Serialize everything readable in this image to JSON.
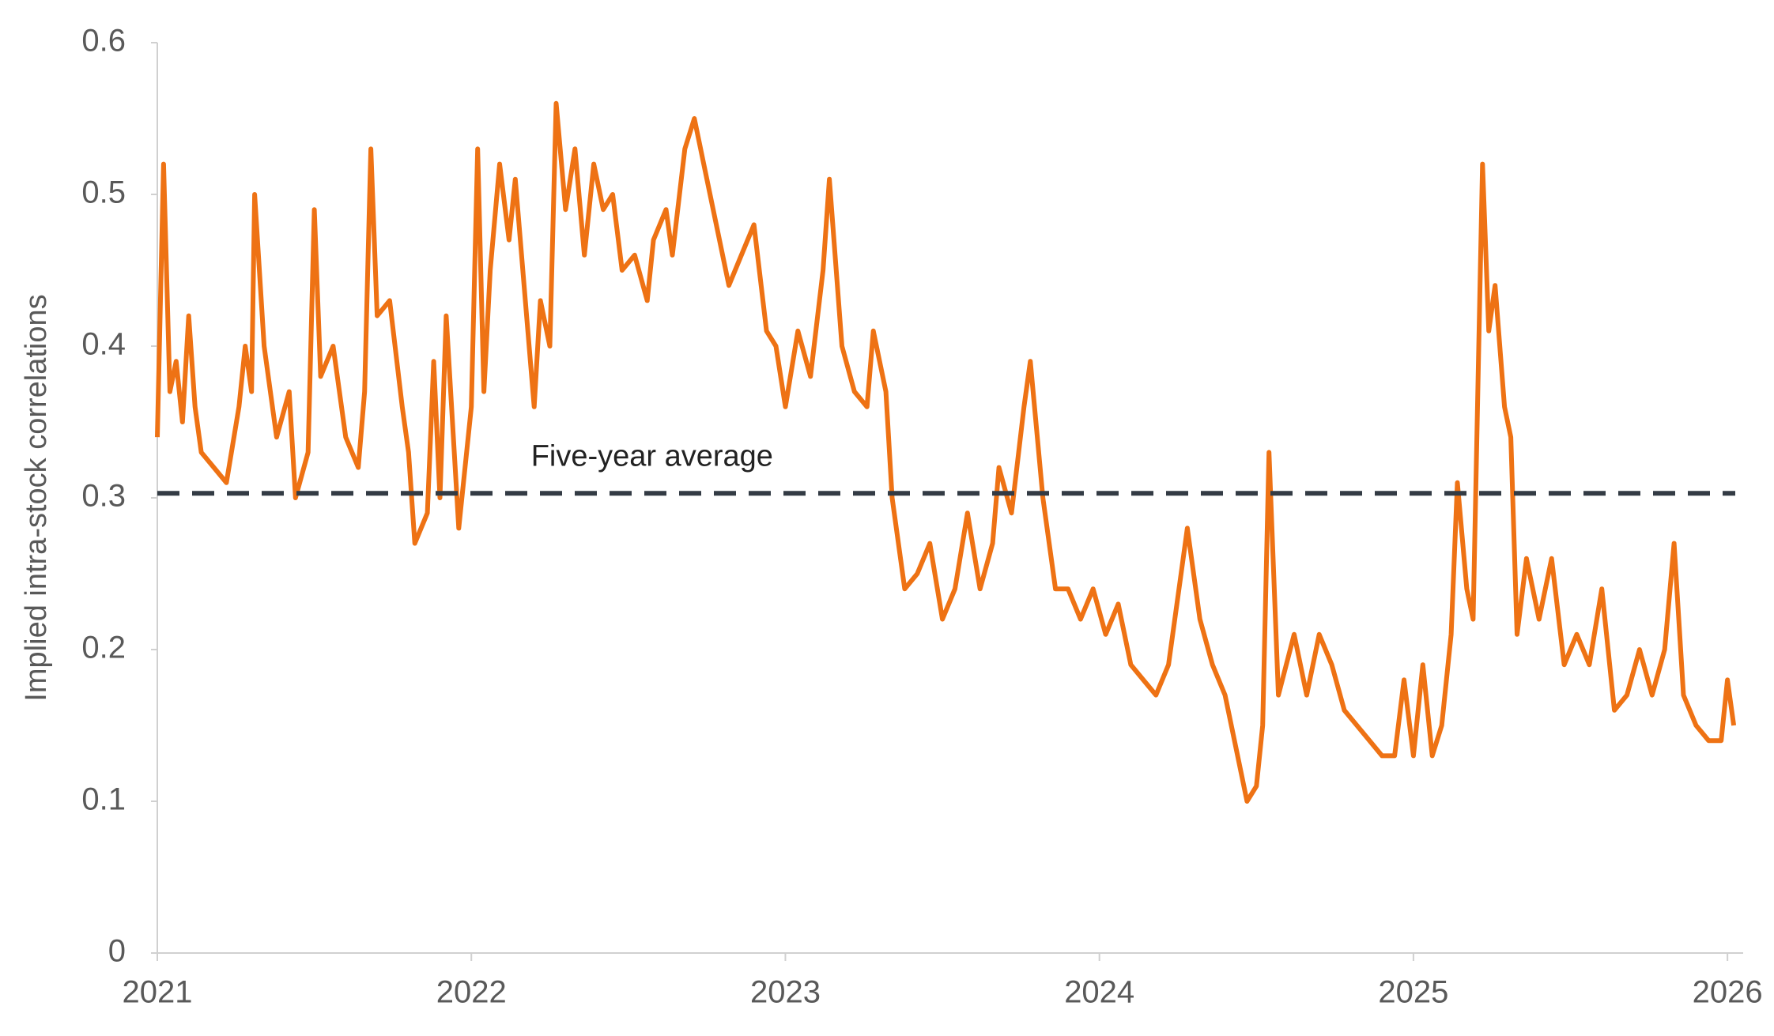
{
  "chart_data": {
    "type": "line",
    "y_label": "Implied intra-stock correlations",
    "xlim": [
      2021,
      2026.05
    ],
    "xticks": [
      2021,
      2022,
      2023,
      2024,
      2025,
      2026
    ],
    "ylim": [
      0,
      0.6
    ],
    "yticks": [
      0,
      0.1,
      0.2,
      0.3,
      0.4,
      0.5,
      0.6
    ],
    "x": [
      2021.0,
      2021.02,
      2021.04,
      2021.06,
      2021.08,
      2021.1,
      2021.12,
      2021.14,
      2021.18,
      2021.22,
      2021.26,
      2021.28,
      2021.3,
      2021.31,
      2021.34,
      2021.38,
      2021.42,
      2021.44,
      2021.48,
      2021.5,
      2021.52,
      2021.56,
      2021.6,
      2021.64,
      2021.66,
      2021.68,
      2021.7,
      2021.74,
      2021.78,
      2021.8,
      2021.82,
      2021.86,
      2021.88,
      2021.9,
      2021.92,
      2021.96,
      2022.0,
      2022.02,
      2022.04,
      2022.06,
      2022.09,
      2022.12,
      2022.14,
      2022.18,
      2022.2,
      2022.22,
      2022.25,
      2022.27,
      2022.3,
      2022.33,
      2022.36,
      2022.39,
      2022.42,
      2022.45,
      2022.48,
      2022.52,
      2022.56,
      2022.58,
      2022.62,
      2022.64,
      2022.68,
      2022.71,
      2022.74,
      2022.78,
      2022.82,
      2022.86,
      2022.9,
      2022.94,
      2022.97,
      2023.0,
      2023.04,
      2023.08,
      2023.12,
      2023.14,
      2023.18,
      2023.22,
      2023.26,
      2023.28,
      2023.32,
      2023.34,
      2023.38,
      2023.42,
      2023.46,
      2023.5,
      2023.54,
      2023.58,
      2023.62,
      2023.66,
      2023.68,
      2023.72,
      2023.76,
      2023.78,
      2023.82,
      2023.86,
      2023.9,
      2023.94,
      2023.98,
      2024.02,
      2024.06,
      2024.1,
      2024.14,
      2024.18,
      2024.22,
      2024.26,
      2024.28,
      2024.32,
      2024.36,
      2024.4,
      2024.44,
      2024.47,
      2024.5,
      2024.52,
      2024.54,
      2024.57,
      2024.62,
      2024.66,
      2024.7,
      2024.74,
      2024.78,
      2024.82,
      2024.86,
      2024.9,
      2024.94,
      2024.97,
      2025.0,
      2025.03,
      2025.06,
      2025.09,
      2025.12,
      2025.14,
      2025.17,
      2025.19,
      2025.22,
      2025.24,
      2025.26,
      2025.29,
      2025.31,
      2025.33,
      2025.36,
      2025.4,
      2025.44,
      2025.48,
      2025.52,
      2025.56,
      2025.6,
      2025.64,
      2025.68,
      2025.72,
      2025.76,
      2025.8,
      2025.83,
      2025.86,
      2025.9,
      2025.94,
      2025.98,
      2026.0,
      2026.02
    ],
    "series": [
      {
        "color": "#ee7214",
        "values": [
          0.34,
          0.52,
          0.37,
          0.39,
          0.35,
          0.42,
          0.36,
          0.33,
          0.32,
          0.31,
          0.36,
          0.4,
          0.37,
          0.5,
          0.4,
          0.34,
          0.37,
          0.3,
          0.33,
          0.49,
          0.38,
          0.4,
          0.34,
          0.32,
          0.37,
          0.53,
          0.42,
          0.43,
          0.36,
          0.33,
          0.27,
          0.29,
          0.39,
          0.3,
          0.42,
          0.28,
          0.36,
          0.53,
          0.37,
          0.45,
          0.52,
          0.47,
          0.51,
          0.41,
          0.36,
          0.43,
          0.4,
          0.56,
          0.49,
          0.53,
          0.46,
          0.52,
          0.49,
          0.5,
          0.45,
          0.46,
          0.43,
          0.47,
          0.49,
          0.46,
          0.53,
          0.55,
          0.52,
          0.48,
          0.44,
          0.46,
          0.48,
          0.41,
          0.4,
          0.36,
          0.41,
          0.38,
          0.45,
          0.51,
          0.4,
          0.37,
          0.36,
          0.41,
          0.37,
          0.3,
          0.24,
          0.25,
          0.27,
          0.22,
          0.24,
          0.29,
          0.24,
          0.27,
          0.32,
          0.29,
          0.36,
          0.39,
          0.3,
          0.24,
          0.24,
          0.22,
          0.24,
          0.21,
          0.23,
          0.19,
          0.18,
          0.17,
          0.19,
          0.25,
          0.28,
          0.22,
          0.19,
          0.17,
          0.13,
          0.1,
          0.11,
          0.15,
          0.33,
          0.17,
          0.21,
          0.17,
          0.21,
          0.19,
          0.16,
          0.15,
          0.14,
          0.13,
          0.13,
          0.18,
          0.13,
          0.19,
          0.13,
          0.15,
          0.21,
          0.31,
          0.24,
          0.22,
          0.52,
          0.41,
          0.44,
          0.36,
          0.34,
          0.21,
          0.26,
          0.22,
          0.26,
          0.19,
          0.21,
          0.19,
          0.24,
          0.16,
          0.17,
          0.2,
          0.17,
          0.2,
          0.27,
          0.17,
          0.15,
          0.14,
          0.14,
          0.18,
          0.15
        ]
      }
    ],
    "reference_line": {
      "value": 0.303,
      "label": "Five-year average",
      "color": "#333b44"
    }
  }
}
